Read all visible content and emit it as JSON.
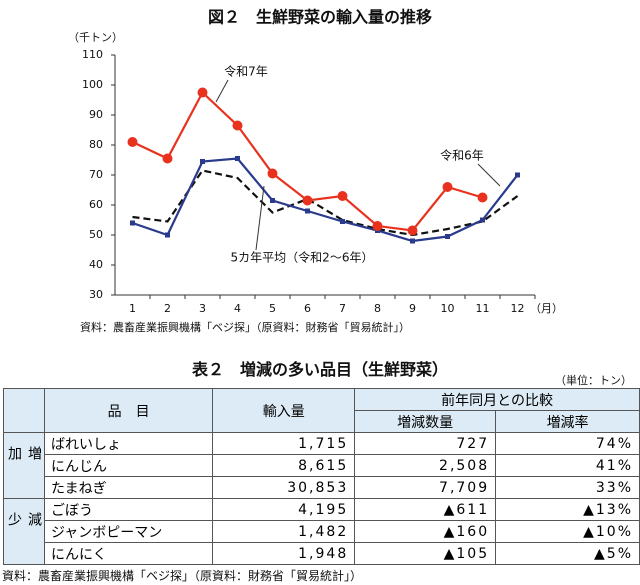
{
  "chart_data": {
    "type": "line",
    "title": "図２　生鮮野菜の輸入量の推移",
    "y_label": "（千トン）",
    "x_label": "（月）",
    "categories": [
      "1",
      "2",
      "3",
      "4",
      "5",
      "6",
      "7",
      "8",
      "9",
      "10",
      "11",
      "12"
    ],
    "series": [
      {
        "name": "令和7年",
        "color": "#e8321e",
        "marker": "circle",
        "values": [
          81,
          75.5,
          97.5,
          86.5,
          70.5,
          61.5,
          63,
          53,
          51.5,
          66,
          62.5,
          null
        ]
      },
      {
        "name": "令和6年",
        "color": "#2a3a8c",
        "marker": "square",
        "values": [
          54,
          50,
          74.5,
          75.5,
          61.5,
          58,
          54.5,
          51.5,
          48,
          49.5,
          55,
          70
        ]
      },
      {
        "name": "5カ年平均（令和2～6年）",
        "color": "#111111",
        "dashed": true,
        "values": [
          56,
          54.5,
          71.5,
          69,
          57.5,
          62,
          55,
          52,
          50,
          52,
          54.5,
          63
        ]
      }
    ],
    "ylim": [
      30,
      110
    ],
    "yticks": [
      30,
      40,
      50,
      60,
      70,
      80,
      90,
      100,
      110
    ],
    "grid": false,
    "source": "資料：農畜産業振興機構「ベジ探」（原資料：財務省「貿易統計」）"
  },
  "table": {
    "title": "表２　増減の多い品目（生鮮野菜）",
    "unit": "（単位：トン）",
    "headers": {
      "item": "品　目",
      "import": "輸入量",
      "compare": "前年同月との比較",
      "qty": "増減数量",
      "rate": "増減率"
    },
    "groups": [
      {
        "label": "増加",
        "rows": [
          [
            "ばれいしょ",
            "1,715",
            "727",
            "74%"
          ],
          [
            "にんじん",
            "8,615",
            "2,508",
            "41%"
          ],
          [
            "たまねぎ",
            "30,853",
            "7,709",
            "33%"
          ]
        ]
      },
      {
        "label": "減少",
        "rows": [
          [
            "ごぼう",
            "4,195",
            "▲611",
            "▲13%"
          ],
          [
            "ジャンボピーマン",
            "1,482",
            "▲160",
            "▲10%"
          ],
          [
            "にんにく",
            "1,948",
            "▲105",
            "▲5%"
          ]
        ]
      }
    ],
    "source": "資料：農畜産業振興機構「ベジ探」（原資料：財務省「貿易統計」）"
  }
}
